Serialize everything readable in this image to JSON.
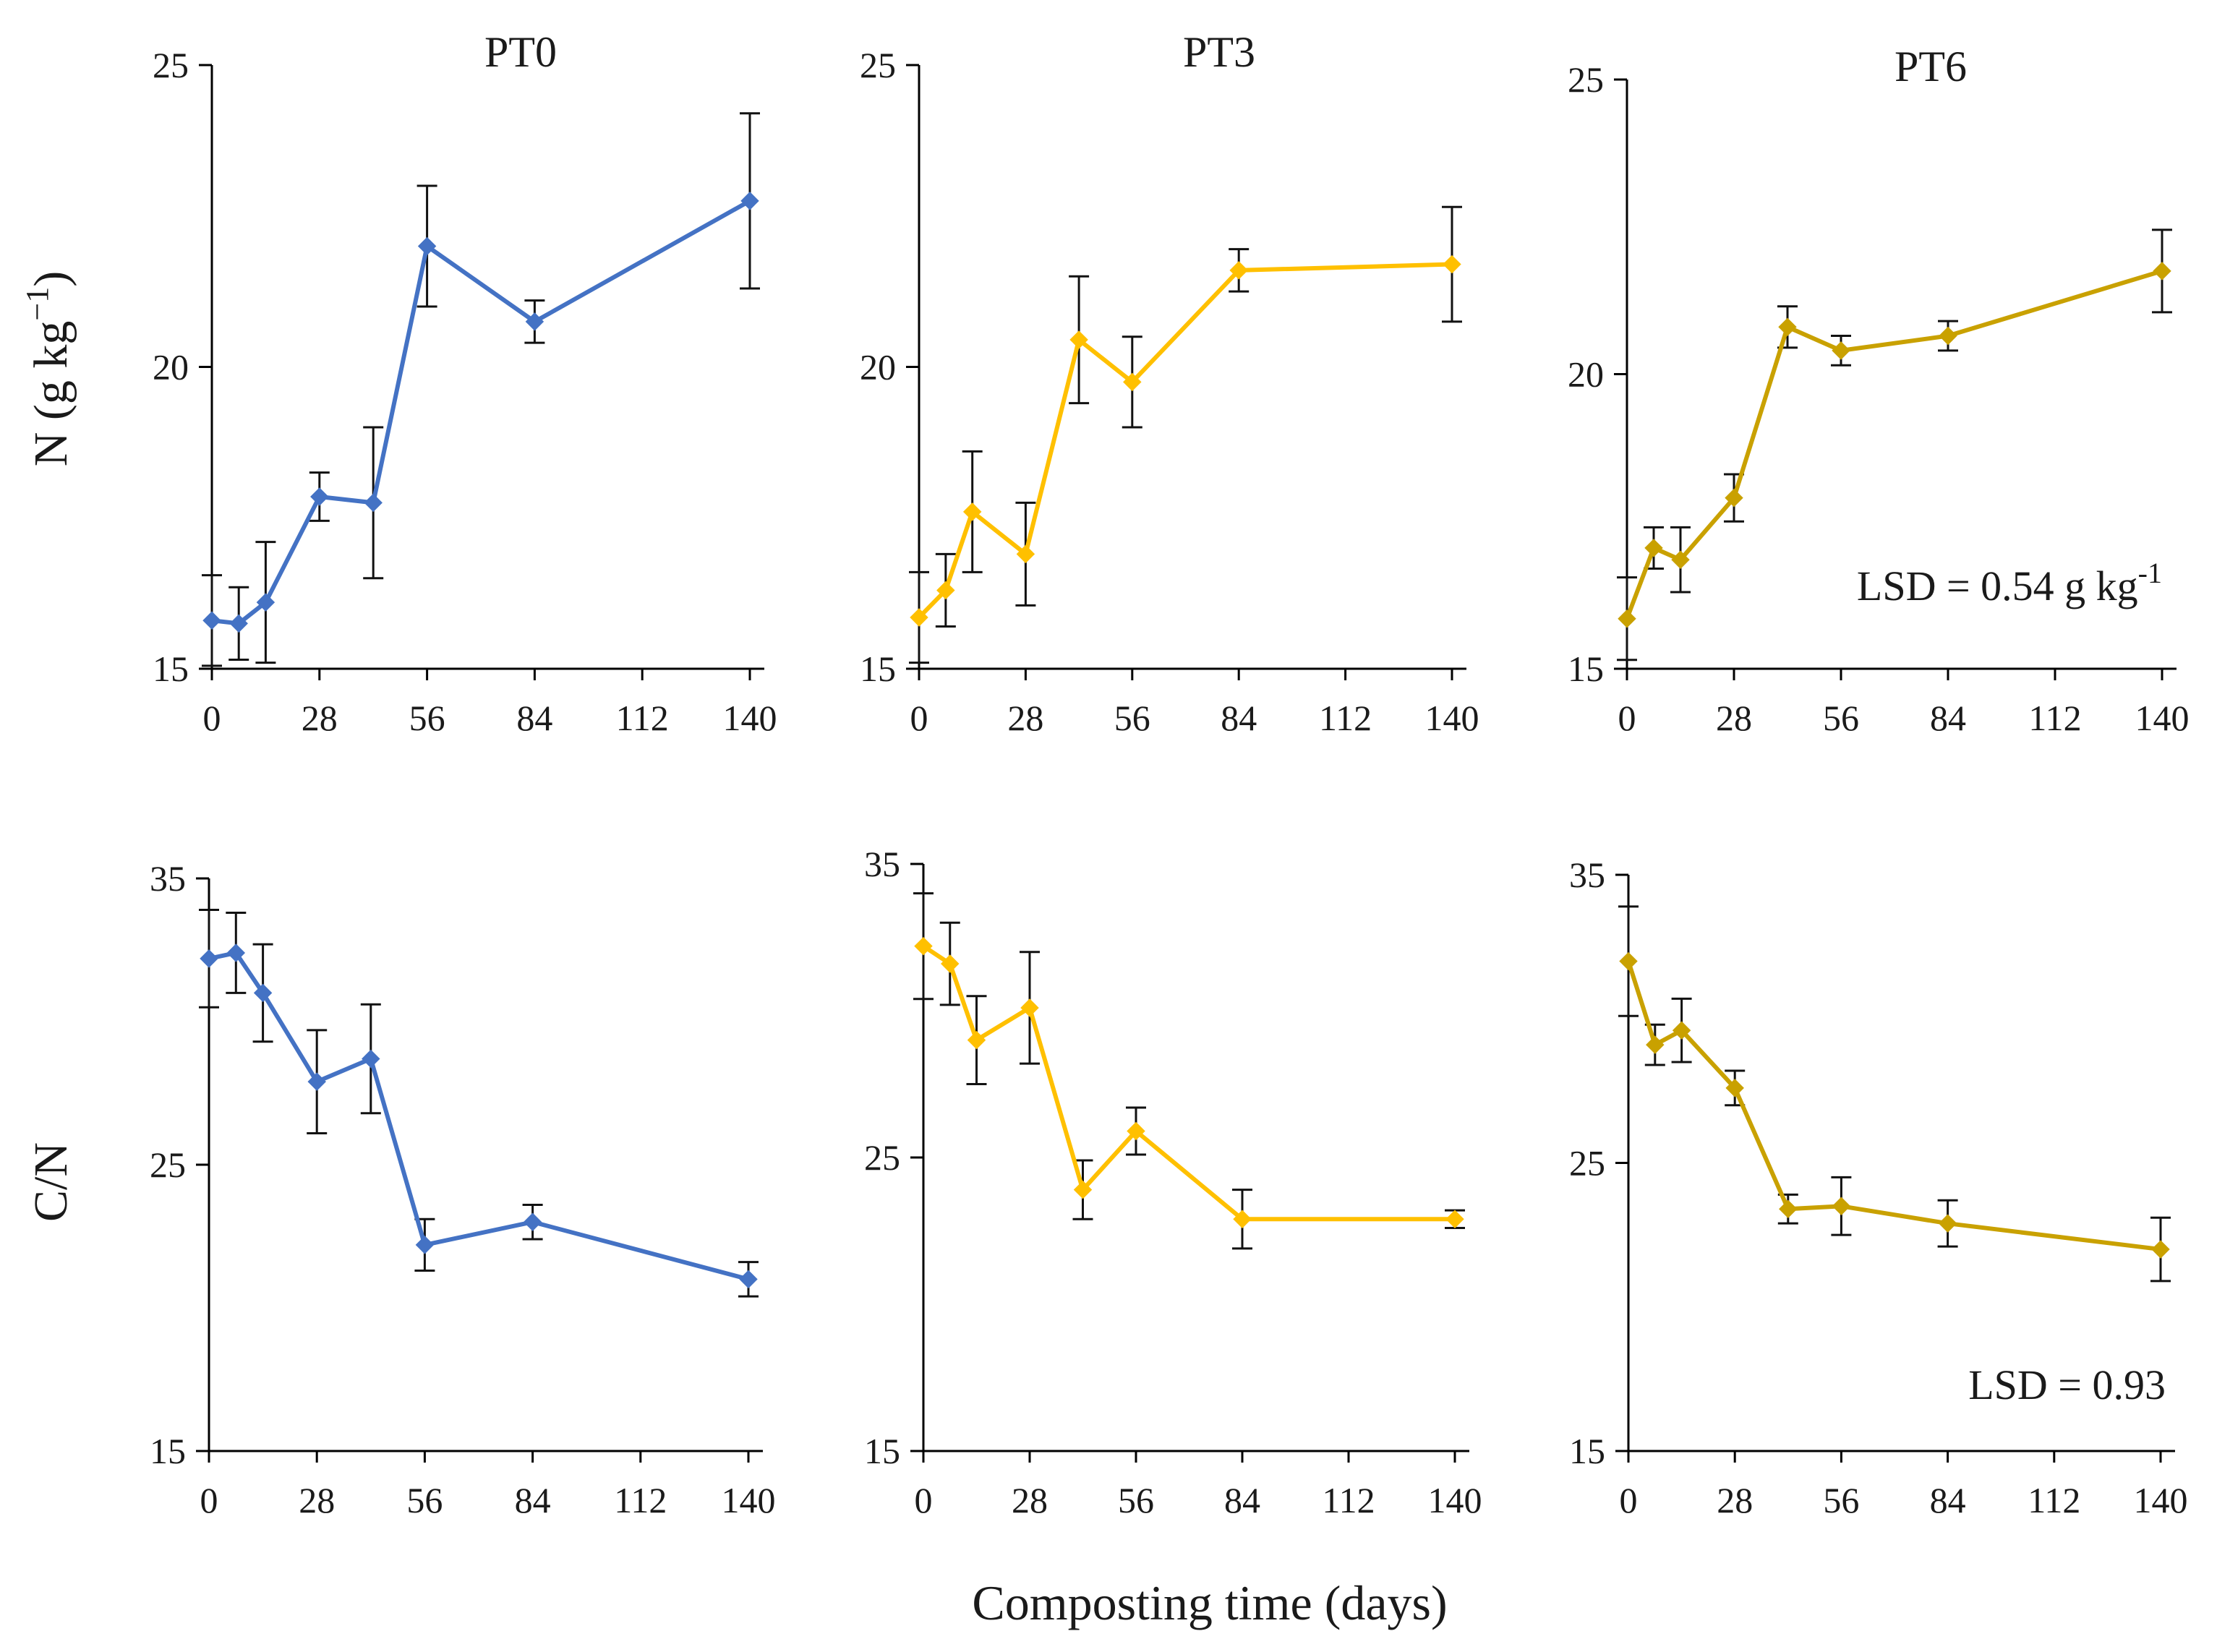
{
  "figure": {
    "xlabel": "Composting time (days)",
    "ylabel_top": "N (g kg",
    "ylabel_top_sup": "−1",
    "ylabel_top_close": ")",
    "ylabel_bottom": "C/N"
  },
  "colors": {
    "PT0": "#4472C4",
    "PT3": "#FFC000",
    "PT6": "#C9A100"
  },
  "chart_data": [
    {
      "type": "line",
      "title": "PT0",
      "xlabel": "",
      "ylabel": "N (g kg−1)",
      "xlim": [
        0,
        140
      ],
      "xticks": [
        0,
        28,
        56,
        84,
        112,
        140
      ],
      "ylim": [
        15,
        25
      ],
      "yticks": [
        15,
        20,
        25
      ],
      "series": [
        {
          "name": "PT0",
          "x": [
            0,
            7,
            14,
            28,
            42,
            56,
            84,
            140
          ],
          "values": [
            15.8,
            15.75,
            16.1,
            17.85,
            17.75,
            22.0,
            20.75,
            22.75
          ],
          "errors": [
            0.75,
            0.6,
            1.0,
            0.4,
            1.25,
            1.0,
            0.35,
            1.45
          ]
        }
      ],
      "annotation": ""
    },
    {
      "type": "line",
      "title": "PT3",
      "xlabel": "",
      "ylabel": "",
      "xlim": [
        0,
        140
      ],
      "xticks": [
        0,
        28,
        56,
        84,
        112,
        140
      ],
      "ylim": [
        15,
        25
      ],
      "yticks": [
        15,
        20,
        25
      ],
      "series": [
        {
          "name": "PT3",
          "x": [
            0,
            7,
            14,
            28,
            42,
            56,
            84,
            140
          ],
          "values": [
            15.85,
            16.3,
            17.6,
            16.9,
            20.45,
            19.75,
            21.6,
            21.7
          ],
          "errors": [
            0.75,
            0.6,
            1.0,
            0.85,
            1.05,
            0.75,
            0.35,
            0.95
          ]
        }
      ],
      "annotation": ""
    },
    {
      "type": "line",
      "title": "PT6",
      "xlabel": "",
      "ylabel": "",
      "xlim": [
        0,
        140
      ],
      "xticks": [
        0,
        28,
        56,
        84,
        112,
        140
      ],
      "ylim": [
        15,
        25
      ],
      "yticks": [
        15,
        20,
        25
      ],
      "series": [
        {
          "name": "PT6",
          "x": [
            0,
            7,
            14,
            28,
            42,
            56,
            84,
            140
          ],
          "values": [
            15.85,
            17.05,
            16.85,
            17.9,
            20.8,
            20.4,
            20.65,
            21.75
          ],
          "errors": [
            0.7,
            0.35,
            0.55,
            0.4,
            0.35,
            0.25,
            0.25,
            0.7
          ]
        }
      ],
      "annotation": "LSD = 0.54 g kg-1"
    },
    {
      "type": "line",
      "title": "",
      "xlabel": "",
      "ylabel": "C/N",
      "xlim": [
        0,
        140
      ],
      "xticks": [
        0,
        28,
        56,
        84,
        112,
        140
      ],
      "ylim": [
        15,
        35
      ],
      "yticks": [
        15,
        25,
        35
      ],
      "series": [
        {
          "name": "PT0",
          "x": [
            0,
            7,
            14,
            28,
            42,
            56,
            84,
            140
          ],
          "values": [
            32.2,
            32.4,
            31.0,
            27.9,
            28.7,
            22.2,
            23.0,
            21.0
          ],
          "errors": [
            1.7,
            1.4,
            1.7,
            1.8,
            1.9,
            0.9,
            0.6,
            0.6
          ]
        }
      ],
      "annotation": ""
    },
    {
      "type": "line",
      "title": "",
      "xlabel": "",
      "ylabel": "",
      "xlim": [
        0,
        140
      ],
      "xticks": [
        0,
        28,
        56,
        84,
        112,
        140
      ],
      "ylim": [
        15,
        35
      ],
      "yticks": [
        15,
        25,
        35
      ],
      "series": [
        {
          "name": "PT3",
          "x": [
            0,
            7,
            14,
            28,
            42,
            56,
            84,
            140
          ],
          "values": [
            32.2,
            31.6,
            29.0,
            30.1,
            23.9,
            25.9,
            22.9,
            22.9
          ],
          "errors": [
            1.8,
            1.4,
            1.5,
            1.9,
            1.0,
            0.8,
            1.0,
            0.3
          ]
        }
      ],
      "annotation": ""
    },
    {
      "type": "line",
      "title": "",
      "xlabel": "",
      "ylabel": "",
      "xlim": [
        0,
        140
      ],
      "xticks": [
        0,
        28,
        56,
        84,
        112,
        140
      ],
      "ylim": [
        15,
        35
      ],
      "yticks": [
        15,
        25,
        35
      ],
      "series": [
        {
          "name": "PT6",
          "x": [
            0,
            7,
            14,
            28,
            42,
            56,
            84,
            140
          ],
          "values": [
            32.0,
            29.1,
            29.6,
            27.6,
            23.4,
            23.5,
            22.9,
            22.0
          ],
          "errors": [
            1.9,
            0.7,
            1.1,
            0.6,
            0.5,
            1.0,
            0.8,
            1.1
          ]
        }
      ],
      "annotation": "LSD = 0.93"
    }
  ]
}
